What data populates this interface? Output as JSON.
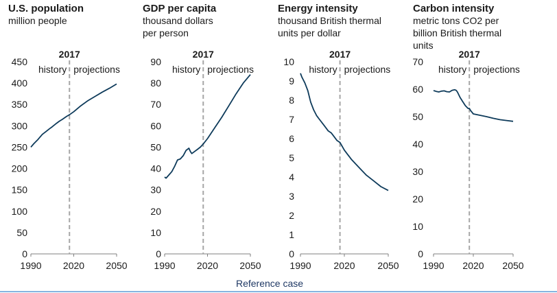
{
  "footer": {
    "label": "Reference case"
  },
  "chart_data": [
    {
      "type": "line",
      "title": "U.S. population",
      "subtitle": [
        "million people"
      ],
      "ylim": [
        0,
        450
      ],
      "yticks": [
        0,
        50,
        100,
        150,
        200,
        250,
        300,
        350,
        400,
        450
      ],
      "xlim": [
        1990,
        2050
      ],
      "xticks": [
        1990,
        2020,
        2050
      ],
      "divider": {
        "x": 2017,
        "label": "2017",
        "left_label": "history",
        "right_label": "projections"
      },
      "color": "#0d3a5a",
      "x": [
        1990,
        1992,
        1995,
        1998,
        2000,
        2003,
        2005,
        2008,
        2010,
        2012,
        2015,
        2017,
        2020,
        2025,
        2030,
        2035,
        2040,
        2045,
        2050
      ],
      "y": [
        250,
        258,
        268,
        280,
        285,
        293,
        298,
        306,
        311,
        315,
        322,
        326,
        333,
        347,
        359,
        369,
        379,
        388,
        398
      ]
    },
    {
      "type": "line",
      "title": "GDP per capita",
      "subtitle": [
        "thousand dollars",
        "per person"
      ],
      "ylim": [
        0,
        90
      ],
      "yticks": [
        0,
        10,
        20,
        30,
        40,
        50,
        60,
        70,
        80,
        90
      ],
      "xlim": [
        1990,
        2050
      ],
      "xticks": [
        1990,
        2020,
        2050
      ],
      "divider": {
        "x": 2017,
        "label": "2017",
        "left_label": "history",
        "right_label": "projections"
      },
      "color": "#0d3a5a",
      "x": [
        1990,
        1991,
        1993,
        1995,
        1997,
        1999,
        2001,
        2003,
        2005,
        2007,
        2008,
        2009,
        2011,
        2013,
        2015,
        2017,
        2020,
        2025,
        2030,
        2035,
        2040,
        2045,
        2050
      ],
      "y": [
        36,
        35.5,
        37,
        38.5,
        41,
        44,
        44.5,
        46,
        48.5,
        49.5,
        48,
        47,
        48,
        49,
        50,
        51.5,
        54,
        59,
        64,
        69.5,
        75,
        80,
        84
      ]
    },
    {
      "type": "line",
      "title": "Energy intensity",
      "subtitle": [
        "thousand British thermal",
        "units per dollar"
      ],
      "ylim": [
        0,
        10
      ],
      "yticks": [
        0,
        1,
        2,
        3,
        4,
        5,
        6,
        7,
        8,
        9,
        10
      ],
      "xlim": [
        1990,
        2050
      ],
      "xticks": [
        1990,
        2020,
        2050
      ],
      "divider": {
        "x": 2017,
        "label": "2017",
        "left_label": "history",
        "right_label": "projections"
      },
      "color": "#0d3a5a",
      "x": [
        1990,
        1991,
        1993,
        1995,
        1997,
        1999,
        2001,
        2003,
        2005,
        2007,
        2009,
        2011,
        2013,
        2015,
        2017,
        2020,
        2025,
        2030,
        2035,
        2040,
        2045,
        2050
      ],
      "y": [
        9.4,
        9.2,
        8.9,
        8.5,
        7.9,
        7.5,
        7.2,
        7.0,
        6.8,
        6.6,
        6.4,
        6.3,
        6.1,
        5.9,
        5.8,
        5.4,
        4.9,
        4.5,
        4.1,
        3.8,
        3.5,
        3.3
      ]
    },
    {
      "type": "line",
      "title": "Carbon intensity",
      "subtitle": [
        "metric tons CO2 per",
        "billion British thermal",
        "units"
      ],
      "ylim": [
        0,
        70
      ],
      "yticks": [
        0,
        10,
        20,
        30,
        40,
        50,
        60,
        70
      ],
      "xlim": [
        1990,
        2050
      ],
      "xticks": [
        1990,
        2020,
        2050
      ],
      "divider": {
        "x": 2017,
        "label": "2017",
        "left_label": "history",
        "right_label": "projections"
      },
      "color": "#0d3a5a",
      "x": [
        1990,
        1992,
        1994,
        1996,
        1998,
        2000,
        2002,
        2004,
        2006,
        2007,
        2008,
        2010,
        2012,
        2014,
        2016,
        2017,
        2018,
        2020,
        2025,
        2030,
        2035,
        2040,
        2045,
        2050
      ],
      "y": [
        59.5,
        59.2,
        59.0,
        59.3,
        59.4,
        59.1,
        59.0,
        59.6,
        59.8,
        59.6,
        59.0,
        57.0,
        55.5,
        54.0,
        53.0,
        53.0,
        52.2,
        51.0,
        50.5,
        50.0,
        49.4,
        48.9,
        48.6,
        48.3
      ]
    }
  ]
}
